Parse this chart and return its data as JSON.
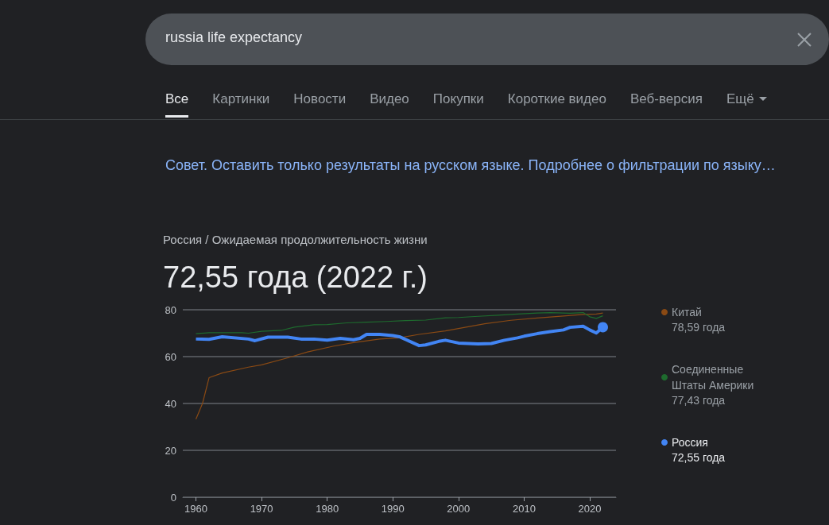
{
  "chart_data": {
    "type": "line",
    "title": "72,55 года (2022 г.)",
    "subtitle": "Россия / Ожидаемая продолжительность жизни",
    "annotations": [
      "russia life expectancy",
      "Все",
      "Картинки",
      "Новости",
      "Видео",
      "Покупки",
      "Короткие видео",
      "Веб-версия",
      "Ещё",
      "Совет. Оставить только результаты на русском языке. Подробнее о фильтрации по языку…",
      "78,59 года",
      "77,43 года",
      "72,55 года"
    ],
    "series": [
      {
        "name": "Китай",
        "color": "#8a4a14",
        "x": [
          1960,
          1961,
          1962,
          1964,
          1968,
          1970,
          1974,
          1977,
          1981,
          1984,
          1988,
          1991,
          1994,
          1998,
          2001,
          2004,
          2008,
          2012,
          2016,
          2019,
          2020,
          2021,
          2022
        ],
        "values": [
          33.3,
          40,
          51,
          53,
          55.5,
          56.5,
          59.5,
          62,
          64.5,
          66,
          67.5,
          68,
          69.5,
          71,
          72.5,
          74,
          75.5,
          76.5,
          77.3,
          78,
          78.1,
          78.2,
          78.59
        ]
      },
      {
        "name": "Соединенные Штаты Америки",
        "color": "#1e6b2e",
        "x": [
          1960,
          1962,
          1967,
          1968,
          1970,
          1973,
          1975,
          1978,
          1980,
          1983,
          1986,
          1989,
          1992,
          1995,
          1998,
          2000,
          2003,
          2006,
          2009,
          2012,
          2014,
          2017,
          2019,
          2020,
          2021,
          2022
        ],
        "values": [
          69.8,
          70.2,
          70.2,
          70,
          70.8,
          71.2,
          72.6,
          73.6,
          73.7,
          74.4,
          74.7,
          75,
          75.4,
          75.6,
          76.6,
          76.7,
          77.2,
          77.7,
          78.2,
          78.6,
          78.8,
          78.5,
          78.8,
          77,
          76.3,
          77.43
        ]
      },
      {
        "name": "Россия",
        "color": "#4285f4",
        "x": [
          1960,
          1962,
          1964,
          1968,
          1969,
          1971,
          1974,
          1976,
          1978,
          1980,
          1982,
          1984,
          1985,
          1986,
          1988,
          1990,
          1991,
          1993,
          1994,
          1995,
          1997,
          1998,
          2000,
          2003,
          2005,
          2007,
          2009,
          2010,
          2012,
          2014,
          2016,
          2017,
          2019,
          2020,
          2021,
          2022
        ],
        "values": [
          67.5,
          67.4,
          68.5,
          67.5,
          66.8,
          68.3,
          68.3,
          67.5,
          67.5,
          67,
          67.8,
          67.2,
          67.8,
          69.5,
          69.5,
          69,
          68.5,
          66,
          64.7,
          65,
          66.5,
          67,
          65.8,
          65.4,
          65.6,
          67,
          68,
          68.7,
          69.8,
          70.7,
          71.4,
          72.5,
          73,
          71.4,
          70.1,
          72.55
        ]
      }
    ],
    "xlim": [
      1958,
      2024
    ],
    "xticks": [
      1960,
      1970,
      1980,
      1990,
      2000,
      2010,
      2020
    ],
    "ylim": [
      0,
      80
    ],
    "yticks": [
      0,
      20,
      40,
      60,
      80
    ],
    "grid": "y",
    "legend": "right",
    "marker": "none"
  }
}
